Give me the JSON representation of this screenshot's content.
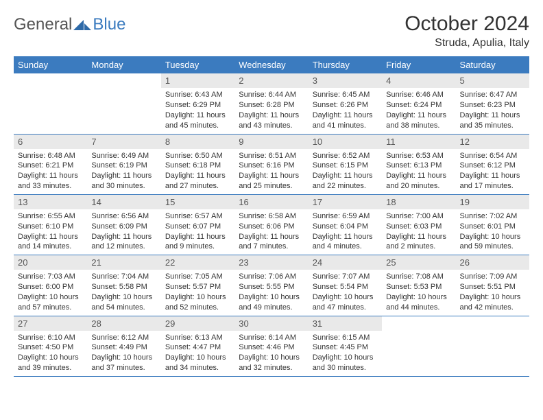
{
  "brand": {
    "general": "General",
    "blue": "Blue"
  },
  "title": "October 2024",
  "location": "Struda, Apulia, Italy",
  "colors": {
    "header_bg": "#3b7bbf",
    "daynum_bg": "#e9e9e9",
    "row_border": "#3b7bbf",
    "text": "#333333",
    "header_text": "#ffffff"
  },
  "day_headers": [
    "Sunday",
    "Monday",
    "Tuesday",
    "Wednesday",
    "Thursday",
    "Friday",
    "Saturday"
  ],
  "weeks": [
    [
      null,
      null,
      {
        "n": "1",
        "sr": "6:43 AM",
        "ss": "6:29 PM",
        "dl": "11 hours and 45 minutes."
      },
      {
        "n": "2",
        "sr": "6:44 AM",
        "ss": "6:28 PM",
        "dl": "11 hours and 43 minutes."
      },
      {
        "n": "3",
        "sr": "6:45 AM",
        "ss": "6:26 PM",
        "dl": "11 hours and 41 minutes."
      },
      {
        "n": "4",
        "sr": "6:46 AM",
        "ss": "6:24 PM",
        "dl": "11 hours and 38 minutes."
      },
      {
        "n": "5",
        "sr": "6:47 AM",
        "ss": "6:23 PM",
        "dl": "11 hours and 35 minutes."
      }
    ],
    [
      {
        "n": "6",
        "sr": "6:48 AM",
        "ss": "6:21 PM",
        "dl": "11 hours and 33 minutes."
      },
      {
        "n": "7",
        "sr": "6:49 AM",
        "ss": "6:19 PM",
        "dl": "11 hours and 30 minutes."
      },
      {
        "n": "8",
        "sr": "6:50 AM",
        "ss": "6:18 PM",
        "dl": "11 hours and 27 minutes."
      },
      {
        "n": "9",
        "sr": "6:51 AM",
        "ss": "6:16 PM",
        "dl": "11 hours and 25 minutes."
      },
      {
        "n": "10",
        "sr": "6:52 AM",
        "ss": "6:15 PM",
        "dl": "11 hours and 22 minutes."
      },
      {
        "n": "11",
        "sr": "6:53 AM",
        "ss": "6:13 PM",
        "dl": "11 hours and 20 minutes."
      },
      {
        "n": "12",
        "sr": "6:54 AM",
        "ss": "6:12 PM",
        "dl": "11 hours and 17 minutes."
      }
    ],
    [
      {
        "n": "13",
        "sr": "6:55 AM",
        "ss": "6:10 PM",
        "dl": "11 hours and 14 minutes."
      },
      {
        "n": "14",
        "sr": "6:56 AM",
        "ss": "6:09 PM",
        "dl": "11 hours and 12 minutes."
      },
      {
        "n": "15",
        "sr": "6:57 AM",
        "ss": "6:07 PM",
        "dl": "11 hours and 9 minutes."
      },
      {
        "n": "16",
        "sr": "6:58 AM",
        "ss": "6:06 PM",
        "dl": "11 hours and 7 minutes."
      },
      {
        "n": "17",
        "sr": "6:59 AM",
        "ss": "6:04 PM",
        "dl": "11 hours and 4 minutes."
      },
      {
        "n": "18",
        "sr": "7:00 AM",
        "ss": "6:03 PM",
        "dl": "11 hours and 2 minutes."
      },
      {
        "n": "19",
        "sr": "7:02 AM",
        "ss": "6:01 PM",
        "dl": "10 hours and 59 minutes."
      }
    ],
    [
      {
        "n": "20",
        "sr": "7:03 AM",
        "ss": "6:00 PM",
        "dl": "10 hours and 57 minutes."
      },
      {
        "n": "21",
        "sr": "7:04 AM",
        "ss": "5:58 PM",
        "dl": "10 hours and 54 minutes."
      },
      {
        "n": "22",
        "sr": "7:05 AM",
        "ss": "5:57 PM",
        "dl": "10 hours and 52 minutes."
      },
      {
        "n": "23",
        "sr": "7:06 AM",
        "ss": "5:55 PM",
        "dl": "10 hours and 49 minutes."
      },
      {
        "n": "24",
        "sr": "7:07 AM",
        "ss": "5:54 PM",
        "dl": "10 hours and 47 minutes."
      },
      {
        "n": "25",
        "sr": "7:08 AM",
        "ss": "5:53 PM",
        "dl": "10 hours and 44 minutes."
      },
      {
        "n": "26",
        "sr": "7:09 AM",
        "ss": "5:51 PM",
        "dl": "10 hours and 42 minutes."
      }
    ],
    [
      {
        "n": "27",
        "sr": "6:10 AM",
        "ss": "4:50 PM",
        "dl": "10 hours and 39 minutes."
      },
      {
        "n": "28",
        "sr": "6:12 AM",
        "ss": "4:49 PM",
        "dl": "10 hours and 37 minutes."
      },
      {
        "n": "29",
        "sr": "6:13 AM",
        "ss": "4:47 PM",
        "dl": "10 hours and 34 minutes."
      },
      {
        "n": "30",
        "sr": "6:14 AM",
        "ss": "4:46 PM",
        "dl": "10 hours and 32 minutes."
      },
      {
        "n": "31",
        "sr": "6:15 AM",
        "ss": "4:45 PM",
        "dl": "10 hours and 30 minutes."
      },
      null,
      null
    ]
  ],
  "labels": {
    "sunrise": "Sunrise:",
    "sunset": "Sunset:",
    "daylight": "Daylight:"
  }
}
